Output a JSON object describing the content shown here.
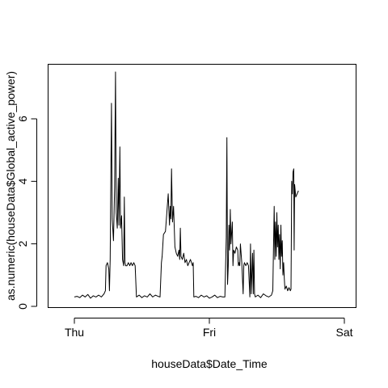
{
  "chart_data": {
    "type": "line",
    "title": "",
    "xlabel": "houseData$Date_Time",
    "ylabel": "as.numeric(houseData$Global_active_power)",
    "xlim": [
      0,
      2
    ],
    "ylim": [
      0,
      7.6
    ],
    "x_ticks": [
      {
        "value": 0,
        "label": "Thu"
      },
      {
        "value": 1,
        "label": "Fri"
      },
      {
        "value": 2,
        "label": "Sat"
      }
    ],
    "y_ticks": [
      0,
      2,
      4,
      6
    ],
    "grid": false,
    "legend": "none",
    "series": [
      {
        "points": [
          [
            0.0,
            0.3
          ],
          [
            0.02,
            0.32
          ],
          [
            0.04,
            0.28
          ],
          [
            0.06,
            0.36
          ],
          [
            0.08,
            0.3
          ],
          [
            0.1,
            0.38
          ],
          [
            0.12,
            0.26
          ],
          [
            0.14,
            0.34
          ],
          [
            0.16,
            0.3
          ],
          [
            0.18,
            0.36
          ],
          [
            0.2,
            0.3
          ],
          [
            0.22,
            0.4
          ],
          [
            0.23,
            0.5
          ],
          [
            0.235,
            1.3
          ],
          [
            0.245,
            1.4
          ],
          [
            0.255,
            1.2
          ],
          [
            0.26,
            0.5
          ],
          [
            0.265,
            1.5
          ],
          [
            0.275,
            6.5
          ],
          [
            0.28,
            2.8
          ],
          [
            0.29,
            2.1
          ],
          [
            0.298,
            3.8
          ],
          [
            0.305,
            7.5
          ],
          [
            0.31,
            3.0
          ],
          [
            0.318,
            2.5
          ],
          [
            0.325,
            4.1
          ],
          [
            0.33,
            2.6
          ],
          [
            0.337,
            5.1
          ],
          [
            0.342,
            2.5
          ],
          [
            0.35,
            2.9
          ],
          [
            0.357,
            1.5
          ],
          [
            0.365,
            1.3
          ],
          [
            0.37,
            3.5
          ],
          [
            0.375,
            1.4
          ],
          [
            0.38,
            1.3
          ],
          [
            0.39,
            1.3
          ],
          [
            0.4,
            1.4
          ],
          [
            0.41,
            1.3
          ],
          [
            0.42,
            1.4
          ],
          [
            0.43,
            1.3
          ],
          [
            0.44,
            1.4
          ],
          [
            0.45,
            1.3
          ],
          [
            0.46,
            0.3
          ],
          [
            0.48,
            0.36
          ],
          [
            0.5,
            0.28
          ],
          [
            0.52,
            0.34
          ],
          [
            0.54,
            0.3
          ],
          [
            0.56,
            0.4
          ],
          [
            0.58,
            0.3
          ],
          [
            0.6,
            0.36
          ],
          [
            0.62,
            0.32
          ],
          [
            0.635,
            0.3
          ],
          [
            0.645,
            1.4
          ],
          [
            0.65,
            1.6
          ],
          [
            0.66,
            2.3
          ],
          [
            0.675,
            2.4
          ],
          [
            0.685,
            3.0
          ],
          [
            0.695,
            3.6
          ],
          [
            0.705,
            2.6
          ],
          [
            0.71,
            3.2
          ],
          [
            0.715,
            2.8
          ],
          [
            0.72,
            4.4
          ],
          [
            0.727,
            2.7
          ],
          [
            0.735,
            3.2
          ],
          [
            0.745,
            1.9
          ],
          [
            0.755,
            1.7
          ],
          [
            0.765,
            1.6
          ],
          [
            0.775,
            1.8
          ],
          [
            0.78,
            1.5
          ],
          [
            0.785,
            2.5
          ],
          [
            0.79,
            1.6
          ],
          [
            0.8,
            1.5
          ],
          [
            0.81,
            1.7
          ],
          [
            0.82,
            1.4
          ],
          [
            0.83,
            1.5
          ],
          [
            0.84,
            1.3
          ],
          [
            0.85,
            1.4
          ],
          [
            0.86,
            1.5
          ],
          [
            0.875,
            1.3
          ],
          [
            0.88,
            1.4
          ],
          [
            0.885,
            0.3
          ],
          [
            0.9,
            0.32
          ],
          [
            0.92,
            0.28
          ],
          [
            0.94,
            0.36
          ],
          [
            0.96,
            0.3
          ],
          [
            0.98,
            0.34
          ],
          [
            1.0,
            0.26
          ],
          [
            1.02,
            0.3
          ],
          [
            1.04,
            0.36
          ],
          [
            1.06,
            0.28
          ],
          [
            1.08,
            0.32
          ],
          [
            1.1,
            0.3
          ],
          [
            1.115,
            0.3
          ],
          [
            1.125,
            2.2
          ],
          [
            1.13,
            5.4
          ],
          [
            1.135,
            0.7
          ],
          [
            1.14,
            1.3
          ],
          [
            1.145,
            2.6
          ],
          [
            1.15,
            1.8
          ],
          [
            1.155,
            3.1
          ],
          [
            1.16,
            2.0
          ],
          [
            1.17,
            2.7
          ],
          [
            1.175,
            1.3
          ],
          [
            1.18,
            1.8
          ],
          [
            1.19,
            1.7
          ],
          [
            1.2,
            1.9
          ],
          [
            1.21,
            1.8
          ],
          [
            1.215,
            1.3
          ],
          [
            1.22,
            1.4
          ],
          [
            1.225,
            1.3
          ],
          [
            1.23,
            2.0
          ],
          [
            1.24,
            1.4
          ],
          [
            1.25,
            0.4
          ],
          [
            1.255,
            1.3
          ],
          [
            1.26,
            1.4
          ],
          [
            1.27,
            1.3
          ],
          [
            1.28,
            1.4
          ],
          [
            1.29,
            1.3
          ],
          [
            1.3,
            0.3
          ],
          [
            1.305,
            2.0
          ],
          [
            1.31,
            0.4
          ],
          [
            1.32,
            1.7
          ],
          [
            1.325,
            0.4
          ],
          [
            1.33,
            1.8
          ],
          [
            1.335,
            0.4
          ],
          [
            1.34,
            0.3
          ],
          [
            1.36,
            0.36
          ],
          [
            1.38,
            0.28
          ],
          [
            1.4,
            0.4
          ],
          [
            1.42,
            0.34
          ],
          [
            1.44,
            0.3
          ],
          [
            1.46,
            0.36
          ],
          [
            1.47,
            0.5
          ],
          [
            1.475,
            1.8
          ],
          [
            1.48,
            3.2
          ],
          [
            1.485,
            1.5
          ],
          [
            1.49,
            2.7
          ],
          [
            1.495,
            1.6
          ],
          [
            1.5,
            3.0
          ],
          [
            1.505,
            1.9
          ],
          [
            1.51,
            2.6
          ],
          [
            1.515,
            1.5
          ],
          [
            1.52,
            2.3
          ],
          [
            1.525,
            1.2
          ],
          [
            1.53,
            2.6
          ],
          [
            1.535,
            1.6
          ],
          [
            1.54,
            2.1
          ],
          [
            1.545,
            1.0
          ],
          [
            1.55,
            1.4
          ],
          [
            1.555,
            0.9
          ],
          [
            1.56,
            0.55
          ],
          [
            1.57,
            0.65
          ],
          [
            1.58,
            0.5
          ],
          [
            1.59,
            0.6
          ],
          [
            1.6,
            0.5
          ],
          [
            1.605,
            0.55
          ],
          [
            1.61,
            4.0
          ],
          [
            1.615,
            3.6
          ],
          [
            1.62,
            4.3
          ],
          [
            1.625,
            4.4
          ],
          [
            1.628,
            1.8
          ],
          [
            1.632,
            3.9
          ],
          [
            1.64,
            3.5
          ],
          [
            1.65,
            3.6
          ],
          [
            1.66,
            3.7
          ]
        ]
      }
    ]
  }
}
